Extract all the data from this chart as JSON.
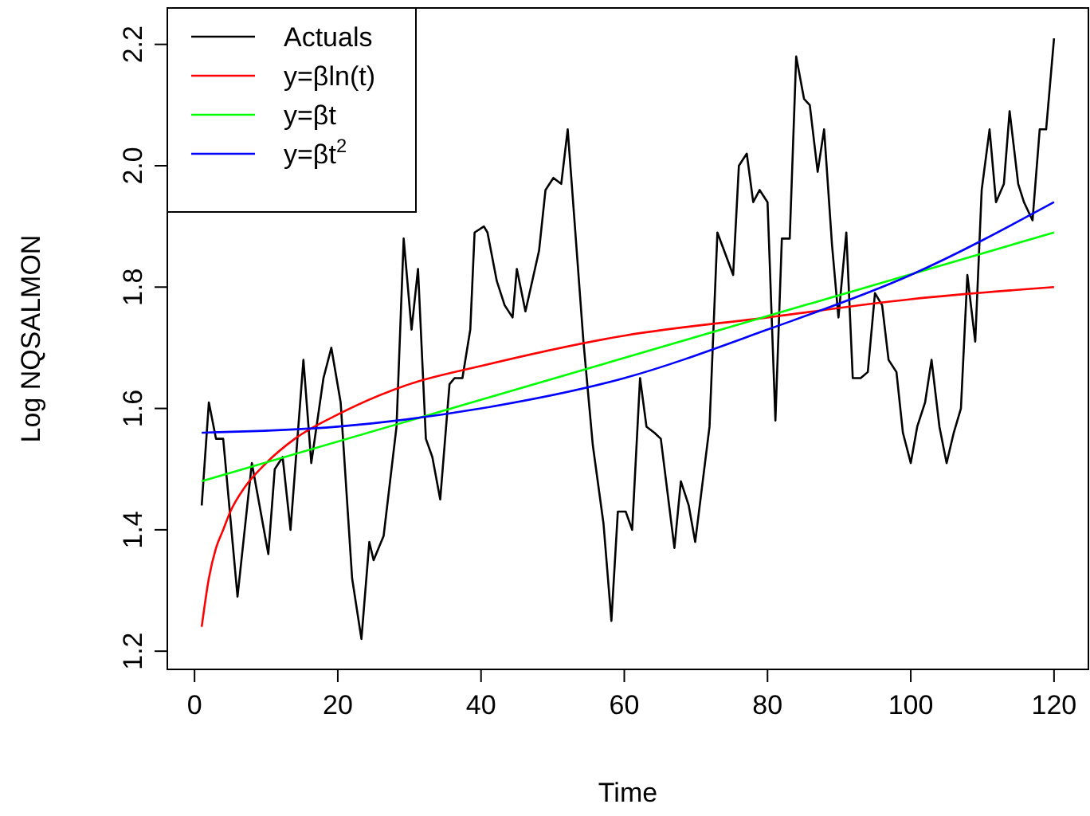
{
  "chart_data": {
    "type": "line",
    "xlabel": "Time",
    "ylabel": "Log NQSALMON",
    "xlim": [
      -3.8,
      124.8
    ],
    "ylim": [
      1.17,
      2.26
    ],
    "xticks": [
      0,
      20,
      40,
      60,
      80,
      100,
      120
    ],
    "yticks": [
      1.2,
      1.4,
      1.6,
      1.8,
      {
        "value": 2,
        "label": "2.0"
      },
      2.2
    ],
    "grid": false,
    "legend": "top left",
    "marker": "none",
    "line_style": "solid",
    "series": [
      {
        "name": "Actuals",
        "color": "#000000",
        "x": [
          1,
          2,
          3,
          4,
          6,
          8,
          10.3,
          11.2,
          12.3,
          13.4,
          15.2,
          16.3,
          18,
          19.1,
          20.4,
          22,
          23.3,
          24.4,
          25,
          26.4,
          28.2,
          29.2,
          30.3,
          31.2,
          32.3,
          33.2,
          34.3,
          35.6,
          36.3,
          37.4,
          38.5,
          39.1,
          40.4,
          40.9,
          42.2,
          43.3,
          44.4,
          45,
          46.2,
          48.1,
          49,
          50.1,
          51.2,
          52.1,
          54.3,
          55.6,
          57.1,
          58.2,
          59.1,
          60.2,
          61.1,
          62.2,
          63.1,
          64.2,
          65.1,
          67,
          67.9,
          69,
          69.9,
          71.9,
          73,
          75.2,
          76,
          77.1,
          78,
          78.9,
          80,
          81.1,
          82,
          83.1,
          84,
          85.1,
          85.9,
          87,
          87.9,
          89,
          89.9,
          91,
          91.9,
          93,
          94,
          95,
          96,
          96.9,
          98,
          98.9,
          100,
          100.9,
          102,
          102.9,
          104,
          105,
          106,
          107,
          107.9,
          109,
          109.9,
          111,
          111.9,
          113,
          113.8,
          115,
          115.8,
          117,
          118,
          118.9,
          120
        ],
        "values": [
          1.44,
          1.61,
          1.55,
          1.55,
          1.29,
          1.51,
          1.36,
          1.5,
          1.52,
          1.4,
          1.68,
          1.51,
          1.65,
          1.7,
          1.61,
          1.32,
          1.22,
          1.38,
          1.35,
          1.39,
          1.57,
          1.88,
          1.73,
          1.83,
          1.55,
          1.52,
          1.45,
          1.64,
          1.65,
          1.65,
          1.73,
          1.89,
          1.9,
          1.89,
          1.81,
          1.77,
          1.75,
          1.83,
          1.76,
          1.86,
          1.96,
          1.98,
          1.97,
          2.06,
          1.71,
          1.54,
          1.41,
          1.25,
          1.43,
          1.43,
          1.4,
          1.65,
          1.57,
          1.56,
          1.55,
          1.37,
          1.48,
          1.44,
          1.38,
          1.57,
          1.89,
          1.82,
          2.0,
          2.02,
          1.94,
          1.96,
          1.94,
          1.58,
          1.88,
          1.88,
          2.18,
          2.11,
          2.1,
          1.99,
          2.06,
          1.87,
          1.75,
          1.89,
          1.65,
          1.65,
          1.66,
          1.79,
          1.77,
          1.68,
          1.66,
          1.56,
          1.51,
          1.57,
          1.61,
          1.68,
          1.57,
          1.51,
          1.56,
          1.6,
          1.82,
          1.71,
          1.96,
          2.06,
          1.94,
          1.97,
          2.09,
          1.97,
          1.94,
          1.91,
          2.06,
          2.06,
          2.21
        ]
      },
      {
        "name": "y=βln(t)",
        "color": "#ff0000",
        "x": [
          1,
          2,
          3,
          4,
          5,
          7,
          10,
          14,
          20,
          30,
          40,
          60,
          80,
          100,
          120
        ],
        "values": [
          1.24,
          1.32,
          1.37,
          1.4,
          1.43,
          1.47,
          1.51,
          1.55,
          1.59,
          1.64,
          1.67,
          1.72,
          1.75,
          1.78,
          1.8
        ]
      },
      {
        "name": "y=βt",
        "color": "#00ff00",
        "x": [
          1,
          120
        ],
        "values": [
          1.48,
          1.89
        ]
      },
      {
        "name": "y=βt$^{2}$",
        "color": "#0000ff",
        "x": [
          1,
          20,
          40,
          60,
          80,
          100,
          120
        ],
        "values": [
          1.56,
          1.57,
          1.6,
          1.65,
          1.73,
          1.82,
          1.94
        ]
      }
    ]
  }
}
